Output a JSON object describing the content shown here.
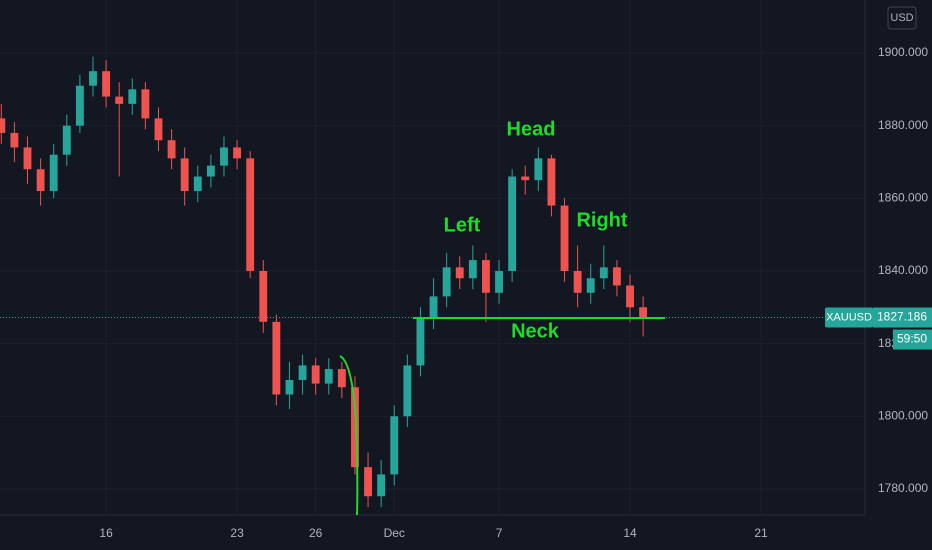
{
  "chart_data": {
    "type": "candlestick",
    "symbol": "XAUUSD",
    "currency": "USD",
    "countdown": "59:50",
    "last_price": 1827.186,
    "annotations": [
      "Left",
      "Head",
      "Right",
      "Neck"
    ],
    "up_color": "#26a69a",
    "down_color": "#ef5350",
    "grid": true,
    "x": [
      -4,
      -3.5,
      -3,
      -2.5,
      -2,
      -1.5,
      -1,
      -0.5,
      0,
      0.5,
      1,
      1.5,
      2,
      2.5,
      3,
      3.5,
      4,
      4.5,
      5,
      5.5,
      6,
      6.5,
      7,
      7.5,
      8,
      8.5,
      9,
      9.5,
      10,
      10.5,
      11,
      11.5,
      12,
      12.5,
      13,
      13.5,
      14,
      14.5,
      15,
      15.5,
      16,
      16.5,
      17,
      17.5,
      18,
      18.5,
      19,
      19.5,
      20,
      20.5
    ],
    "open": [
      1882,
      1878,
      1874,
      1868,
      1862,
      1872,
      1880,
      1891,
      1895,
      1888,
      1886,
      1890,
      1882,
      1876,
      1871,
      1862,
      1866,
      1869,
      1874,
      1871,
      1840,
      1826,
      1806,
      1810,
      1814,
      1809,
      1813,
      1808,
      1786,
      1778,
      1784,
      1800,
      1814,
      1827,
      1833,
      1841,
      1838,
      1843,
      1834,
      1840,
      1866,
      1865,
      1871,
      1858,
      1840,
      1834,
      1838,
      1841,
      1836,
      1830
    ],
    "high": [
      1886,
      1881,
      1877,
      1871,
      1875,
      1883,
      1894,
      1899,
      1898,
      1892,
      1893,
      1892,
      1885,
      1879,
      1874,
      1869,
      1872,
      1877,
      1876,
      1873,
      1843,
      1828,
      1815,
      1817,
      1816,
      1816,
      1815,
      1811,
      1790,
      1788,
      1803,
      1817,
      1830,
      1838,
      1845,
      1844,
      1847,
      1845,
      1843,
      1868,
      1869,
      1874,
      1872,
      1860,
      1847,
      1842,
      1847,
      1843,
      1839,
      1833
    ],
    "low": [
      1875,
      1870,
      1864,
      1858,
      1860,
      1869,
      1878,
      1888,
      1885,
      1866,
      1883,
      1879,
      1873,
      1868,
      1858,
      1859,
      1863,
      1866,
      1868,
      1838,
      1823,
      1803,
      1802,
      1806,
      1806,
      1806,
      1805,
      1784,
      1775,
      1775,
      1781,
      1797,
      1811,
      1824,
      1830,
      1835,
      1835,
      1826,
      1831,
      1837,
      1861,
      1862,
      1855,
      1837,
      1830,
      1831,
      1835,
      1833,
      1826,
      1822
    ],
    "close": [
      1878,
      1874,
      1868,
      1862,
      1872,
      1880,
      1891,
      1895,
      1888,
      1886,
      1890,
      1882,
      1876,
      1871,
      1862,
      1866,
      1869,
      1874,
      1871,
      1840,
      1826,
      1806,
      1810,
      1814,
      1809,
      1813,
      1808,
      1786,
      1778,
      1784,
      1800,
      1814,
      1827,
      1833,
      1841,
      1838,
      1843,
      1834,
      1840,
      1866,
      1865,
      1871,
      1858,
      1840,
      1834,
      1838,
      1841,
      1836,
      1830,
      1827.186
    ],
    "xlim": [
      -4.05,
      28.97
    ],
    "ylim": [
      1772.83,
      1914.59
    ],
    "xticks": [
      {
        "value": 0,
        "label": "16"
      },
      {
        "value": 5,
        "label": "23"
      },
      {
        "value": 8,
        "label": "26"
      },
      {
        "value": 11,
        "label": "Dec"
      },
      {
        "value": 15,
        "label": "7"
      },
      {
        "value": 20,
        "label": "14"
      },
      {
        "value": 25,
        "label": "21"
      }
    ],
    "yticks": [
      {
        "value": 1780,
        "label": "1780.000"
      },
      {
        "value": 1800,
        "label": "1800.000"
      },
      {
        "value": 1820,
        "label": "1820.000"
      },
      {
        "value": 1840,
        "label": "1840.000"
      },
      {
        "value": 1860,
        "label": "1860.000"
      },
      {
        "value": 1880,
        "label": "1880.000"
      },
      {
        "value": 1900,
        "label": "1900.000"
      }
    ]
  }
}
